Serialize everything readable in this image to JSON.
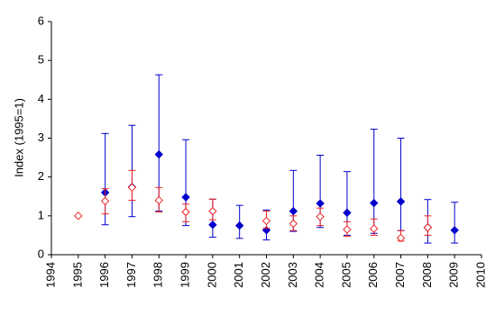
{
  "chart_data": {
    "type": "errorbar-scatter",
    "y_label": "Index (1995=1)",
    "x": [
      1995,
      1996,
      1997,
      1998,
      1999,
      2000,
      2001,
      2002,
      2003,
      2004,
      2005,
      2006,
      2007,
      2008,
      2009
    ],
    "series": [
      {
        "color": "#0000cc",
        "marker": "filled",
        "values": [
          null,
          1.6,
          1.74,
          2.58,
          1.48,
          0.77,
          0.75,
          0.63,
          1.12,
          1.32,
          1.08,
          1.33,
          1.37,
          0.7,
          0.63
        ],
        "lower": [
          null,
          0.77,
          0.98,
          1.12,
          0.75,
          0.45,
          0.42,
          0.38,
          0.6,
          0.7,
          0.5,
          0.55,
          0.62,
          0.3,
          0.3
        ],
        "upper": [
          null,
          3.12,
          3.33,
          4.63,
          2.96,
          1.43,
          1.27,
          1.15,
          2.17,
          2.56,
          2.14,
          3.23,
          3.0,
          1.42,
          1.35
        ]
      },
      {
        "color": "#ee2222",
        "marker": "open",
        "values": [
          1.0,
          1.38,
          1.73,
          1.4,
          1.1,
          1.12,
          null,
          0.87,
          0.8,
          0.98,
          0.65,
          0.67,
          0.43,
          0.7,
          null
        ],
        "lower": [
          null,
          1.05,
          1.4,
          1.1,
          0.85,
          0.9,
          null,
          0.68,
          0.62,
          0.75,
          0.47,
          0.5,
          0.35,
          0.5,
          null
        ],
        "upper": [
          null,
          1.7,
          2.17,
          1.73,
          1.3,
          1.43,
          null,
          1.12,
          1.0,
          1.2,
          0.85,
          0.92,
          0.62,
          1.0,
          null
        ]
      }
    ],
    "xlim": [
      1994,
      2010
    ],
    "xticks": [
      1994,
      1995,
      1996,
      1997,
      1998,
      1999,
      2000,
      2001,
      2002,
      2003,
      2004,
      2005,
      2006,
      2007,
      2008,
      2009,
      2010
    ],
    "ylim": [
      0,
      6
    ],
    "yticks": [
      0,
      1,
      2,
      3,
      4,
      5,
      6
    ],
    "grid": false
  }
}
